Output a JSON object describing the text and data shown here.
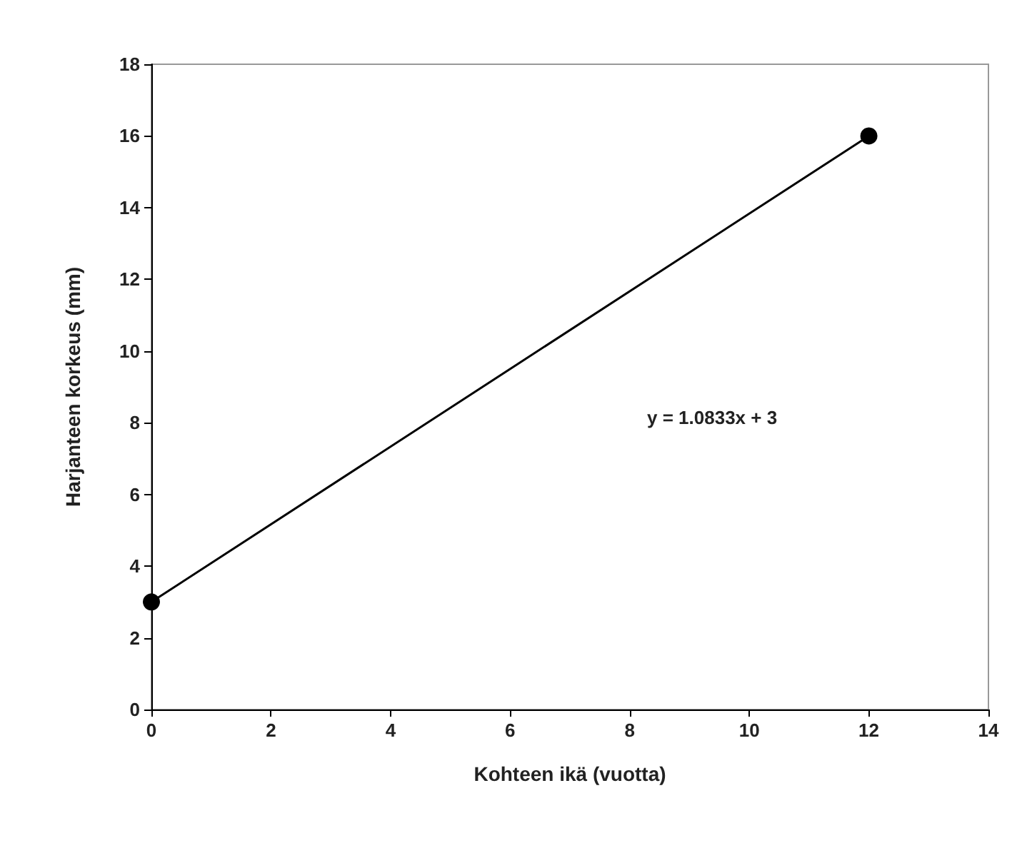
{
  "chart_data": {
    "type": "line",
    "xlabel": "Kohteen ikä (vuotta)",
    "ylabel": "Harjanteen korkeus (mm)",
    "x": [
      0,
      12
    ],
    "series": [
      {
        "color": "#000000",
        "values": [
          3,
          16
        ]
      }
    ],
    "xlim": [
      0,
      14
    ],
    "xticks": [
      0,
      2,
      4,
      6,
      8,
      10,
      12,
      14
    ],
    "ylim": [
      0,
      18
    ],
    "yticks": [
      0,
      2,
      4,
      6,
      8,
      10,
      12,
      14,
      16,
      18
    ],
    "grid": false,
    "marker": "circle",
    "line_style": "solid",
    "annotations": [
      "y = 1.0833x + 3"
    ]
  }
}
